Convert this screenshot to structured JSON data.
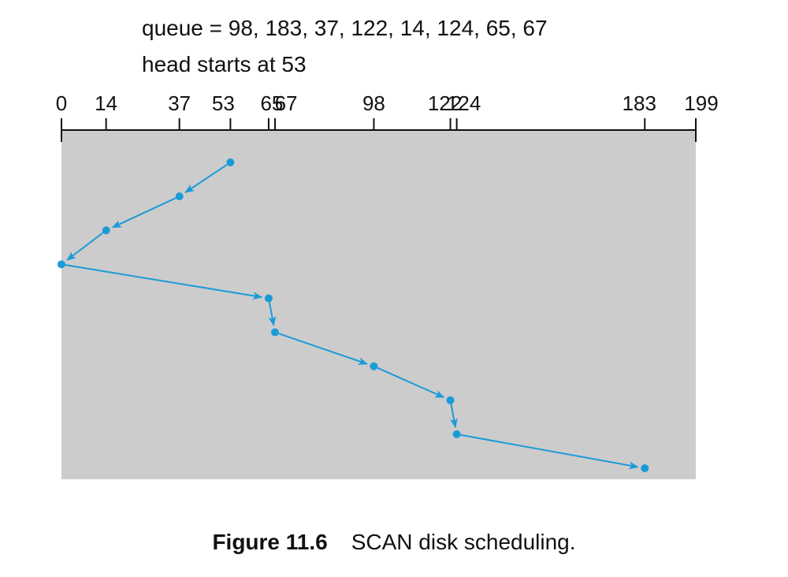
{
  "header": {
    "queue_text": "queue = 98, 183, 37, 122, 14, 124, 65, 67",
    "head_text": "head starts at 53"
  },
  "caption": {
    "number": "Figure 11.6",
    "text": "SCAN disk scheduling."
  },
  "colors": {
    "panel": "#cccccc",
    "path": "#1a9bd7",
    "axis": "#111111"
  },
  "chart_data": {
    "type": "line",
    "axis": {
      "min": 0,
      "max": 199
    },
    "ticks": [
      0,
      14,
      37,
      53,
      65,
      67,
      98,
      122,
      124,
      183,
      199
    ],
    "tick_labels": [
      "0",
      "14",
      "37",
      "53",
      "65",
      "67",
      "98",
      "122",
      "124",
      "183",
      "199"
    ],
    "sequence": [
      53,
      37,
      14,
      0,
      65,
      67,
      98,
      122,
      124,
      183
    ],
    "grid": false
  }
}
